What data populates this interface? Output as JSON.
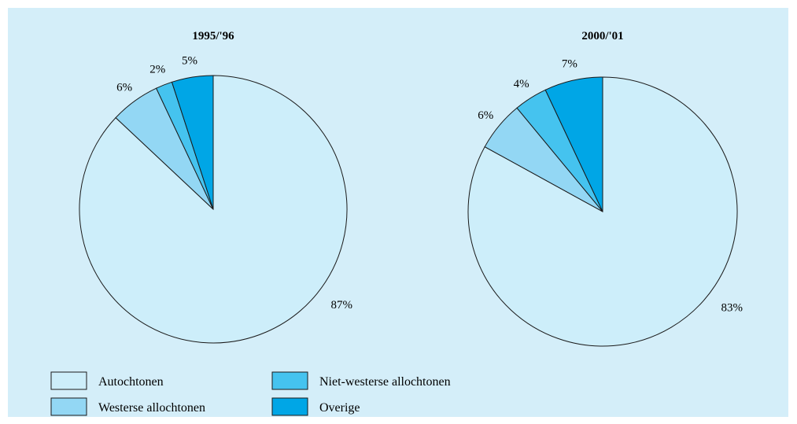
{
  "chart_data": [
    {
      "type": "pie",
      "title": "1995/'96",
      "categories": [
        "Autochtonen",
        "Westerse allochtonen",
        "Niet-westerse allochtonen",
        "Overige"
      ],
      "values": [
        87,
        6,
        2,
        5
      ],
      "labels": [
        "87%",
        "6%",
        "2%",
        "5%"
      ]
    },
    {
      "type": "pie",
      "title": "2000/'01",
      "categories": [
        "Autochtonen",
        "Westerse allochtonen",
        "Niet-westerse allochtonen",
        "Overige"
      ],
      "values": [
        83,
        6,
        4,
        7
      ],
      "labels": [
        "83%",
        "6%",
        "4%",
        "7%"
      ]
    }
  ],
  "legend": {
    "placement": "bottom-left",
    "items": [
      {
        "label": "Autochtonen",
        "color": "#cdeefa"
      },
      {
        "label": "Westerse allochtonen",
        "color": "#93d7f4"
      },
      {
        "label": "Niet-westerse allochtonen",
        "color": "#45c3ef"
      },
      {
        "label": "Overige",
        "color": "#00a6e6"
      }
    ]
  }
}
